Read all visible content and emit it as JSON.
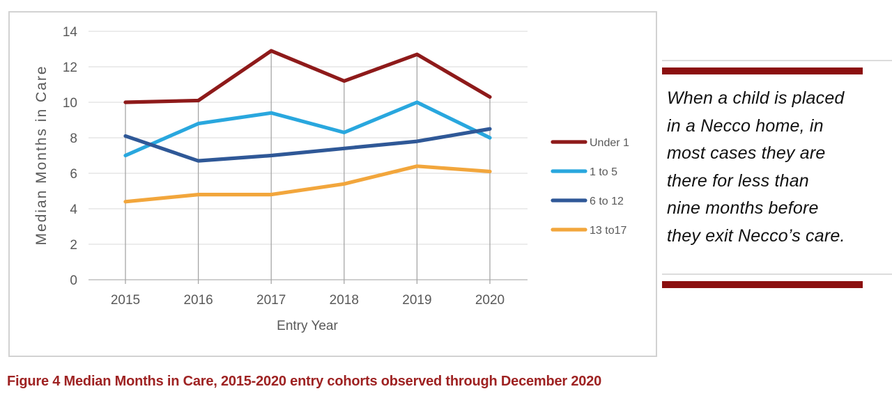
{
  "figure": {
    "caption": "Figure 4 Median Months in Care, 2015-2020 entry cohorts observed through December 2020",
    "caption_color": "#9e2222"
  },
  "pull_quote": {
    "lines": [
      "When a child is placed",
      "in a Necco home, in",
      "most cases they are",
      "there for less than",
      "nine months before",
      "they exit Necco’s care."
    ],
    "bar_color": "#8b0f0f",
    "text_color": "#111111"
  },
  "chart_data": {
    "type": "line",
    "title": "",
    "xlabel": "Entry Year",
    "ylabel": "Median Months in Care",
    "categories": [
      "2015",
      "2016",
      "2017",
      "2018",
      "2019",
      "2020"
    ],
    "yticks": [
      0,
      2,
      4,
      6,
      8,
      10,
      12,
      14
    ],
    "ylim": [
      0,
      14
    ],
    "grid": {
      "horizontal": true,
      "vertical_drop_lines": true
    },
    "legend_position": "right",
    "series": [
      {
        "name": "Under 1",
        "color": "#8e1a1a",
        "values": [
          10.0,
          10.1,
          12.9,
          11.2,
          12.7,
          10.3
        ]
      },
      {
        "name": "1 to 5",
        "color": "#29a7de",
        "values": [
          7.0,
          8.8,
          9.4,
          8.3,
          10.0,
          8.0
        ]
      },
      {
        "name": "6 to 12",
        "color": "#2f5897",
        "values": [
          8.1,
          6.7,
          7.0,
          7.4,
          7.8,
          8.5
        ]
      },
      {
        "name": "13 to17",
        "color": "#f2a63c",
        "values": [
          4.4,
          4.8,
          4.8,
          5.4,
          6.4,
          6.1
        ]
      }
    ],
    "axis_text_color": "#595959",
    "gridline_color": "#d9d9d9",
    "axis_line_color": "#bfbfbf",
    "dropline_color": "#a6a6a6"
  }
}
